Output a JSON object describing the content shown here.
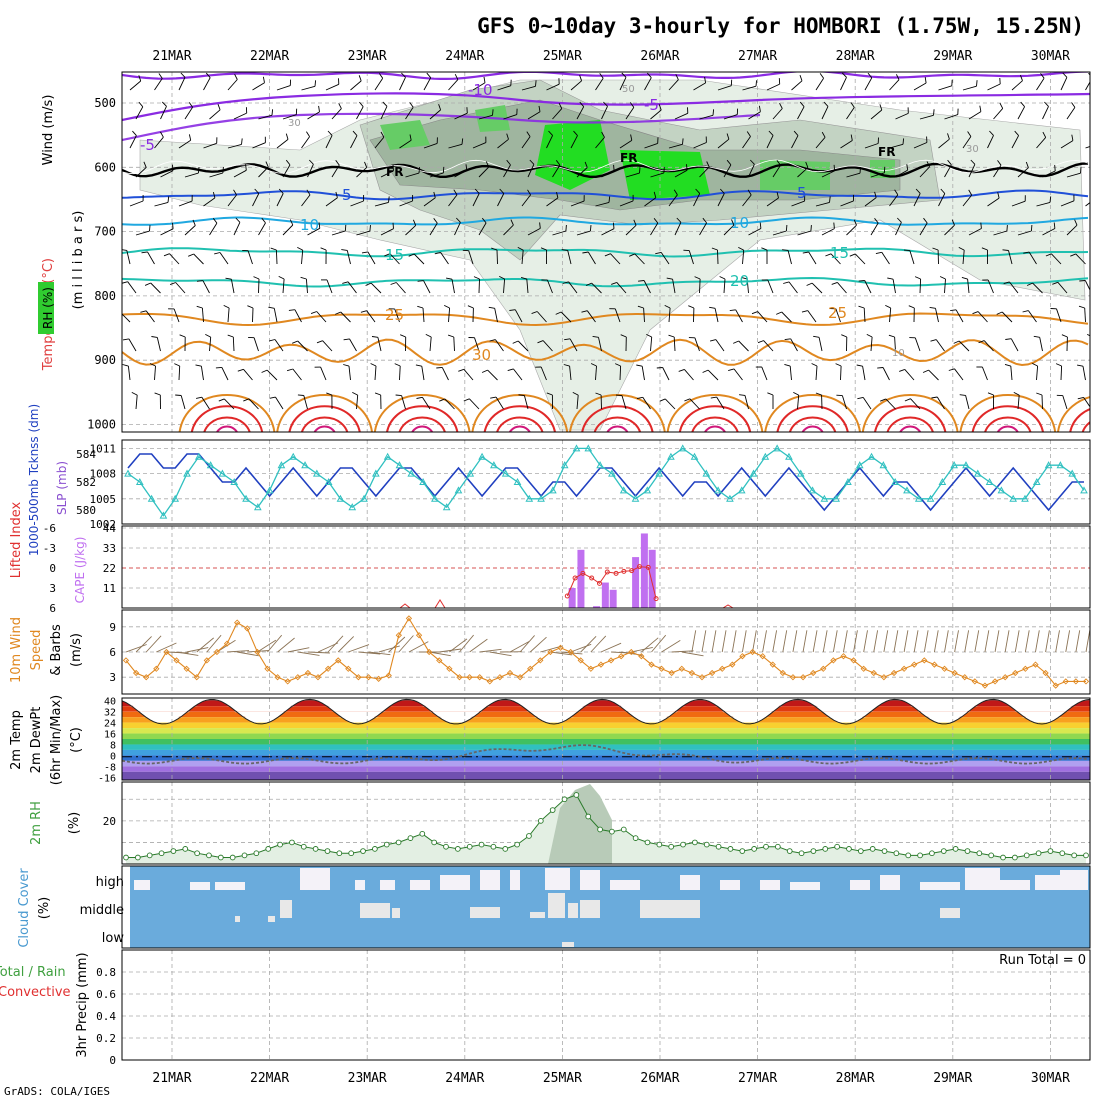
{
  "title": "GFS 0~10day 3-hourly for HOMBORI (1.75W, 15.25N)",
  "credit": "GrADS: COLA/IGES",
  "dates": [
    "21MAR",
    "22MAR",
    "23MAR",
    "24MAR",
    "25MAR",
    "26MAR",
    "27MAR",
    "28MAR",
    "29MAR",
    "30MAR"
  ],
  "colors": {
    "rh_fill": "#c8dcc8",
    "rh_green": "#22cc22",
    "temp_purple": "#8a2be2",
    "temp_blue": "#2050d8",
    "temp_cyan": "#20a8e0",
    "temp_teal": "#20c0b0",
    "temp_orange": "#e08820",
    "temp_red": "#e02828",
    "slp": "#30c0c0",
    "thickness": "#2040c0",
    "cape": "#c070f0",
    "lifted": "#e03030",
    "wind10": "#e08820",
    "rh2m": "#40a040",
    "cloud": "#6aabdc"
  },
  "panels": {
    "profile": {
      "ylabel_wind": "Wind (m/s)",
      "ylabel_temp": "Temperature (°C)",
      "ylabel_mb": "(m i l l i b a r s)",
      "ylabel_rh": "RH (%)",
      "yticks": [
        "500",
        "600",
        "700",
        "800",
        "900",
        "1000"
      ],
      "labels": {
        "t_m10": "-10",
        "t_m5a": "-5",
        "t_m5b": "-5",
        "fr1": "FR",
        "fr2": "FR",
        "fr3": "FR",
        "t5a": "5",
        "t5b": "5",
        "t10a": "10",
        "t10b": "10",
        "t15a": "15",
        "t15b": "15",
        "t20": "20",
        "t25a": "25",
        "t25b": "25",
        "t30": "30",
        "rh50": "50",
        "rh30a": "30",
        "rh30b": "30",
        "rh10": "10"
      }
    },
    "slp": {
      "ylabel_thick": "1000-500mb Tcknss (dm)",
      "ylabel_slp": "SLP (mb)",
      "thick_ticks": [
        "584",
        "582",
        "580"
      ],
      "slp_ticks": [
        "1011",
        "1008",
        "1005",
        "1002"
      ]
    },
    "cape": {
      "ylabel_li": "Lifted Index",
      "ylabel_cape": "CAPE (J/kg)",
      "li_ticks": [
        "-6",
        "-3",
        "0",
        "3",
        "6"
      ],
      "cape_ticks": [
        "44",
        "33",
        "22",
        "11"
      ]
    },
    "wind10": {
      "ylabel1": "10m Wind",
      "ylabel2": "Speed",
      "ylabel3": "& Barbs",
      "ylabel4": "(m/s)",
      "yticks": [
        "9",
        "6",
        "3"
      ]
    },
    "temp2m": {
      "ylabel1": "2m Temp",
      "ylabel2": "2m DewPt",
      "ylabel3": "(6hr Min/Max)",
      "ylabel4": "(°C)",
      "yticks": [
        "40",
        "32",
        "24",
        "16",
        "8",
        "0",
        "-8",
        "-16"
      ]
    },
    "rh2m": {
      "ylabel1": "2m RH",
      "ylabel2": "(%)",
      "yticks": [
        "20"
      ]
    },
    "cloud": {
      "ylabel1": "Cloud Cover",
      "ylabel2": "(%)",
      "levels": [
        "high",
        "middle",
        "low"
      ]
    },
    "precip": {
      "ylabel1": "Total / Rain",
      "ylabel2": "Convective",
      "ylabel3": "3hr Precip (mm)",
      "run_total": "Run Total = 0",
      "yticks": [
        "0.8",
        "0.6",
        "0.4",
        "0.2",
        "0"
      ]
    }
  },
  "chart_data": [
    {
      "type": "line",
      "panel": "profile",
      "title": "GFS 0~10day 3-hourly for HOMBORI (1.75W, 15.25N)",
      "ylabel": "millibars",
      "ylim": [
        1000,
        450
      ],
      "y_scale": "pressure (inverted)",
      "contours_temperature_c": [
        -10,
        -5,
        0,
        5,
        10,
        15,
        20,
        25,
        30
      ],
      "freezing_level_mb": 600,
      "barbs": true,
      "rh_shading": true
    },
    {
      "type": "line",
      "panel": "slp_thickness",
      "series": [
        {
          "name": "SLP (mb)",
          "ylim": [
            1002,
            1012
          ],
          "values": [
            1008,
            1007,
            1005,
            1003,
            1005,
            1008,
            1010,
            1009,
            1008,
            1007,
            1005,
            1004,
            1006,
            1009,
            1010,
            1009,
            1008,
            1007,
            1005,
            1004,
            1005,
            1008,
            1010,
            1009,
            1008,
            1007,
            1005,
            1004,
            1006,
            1008,
            1010,
            1009,
            1008,
            1007,
            1005,
            1005,
            1006,
            1009,
            1011,
            1011,
            1009,
            1008,
            1006,
            1005,
            1006,
            1008,
            1010,
            1011,
            1010,
            1008,
            1006,
            1005,
            1006,
            1008,
            1010,
            1011,
            1010,
            1008,
            1006,
            1005,
            1005,
            1007,
            1009,
            1010,
            1009,
            1007,
            1006,
            1005,
            1005,
            1007,
            1009,
            1009,
            1008,
            1007,
            1006,
            1005,
            1005,
            1007,
            1009,
            1009,
            1008,
            1006
          ]
        },
        {
          "name": "1000-500mb Thickness (dm)",
          "ylim": [
            579,
            585
          ],
          "values": [
            583,
            584,
            584,
            583,
            583,
            584,
            584,
            583,
            582,
            582,
            583,
            582,
            581,
            582,
            583,
            582,
            581,
            582,
            583,
            583,
            582,
            581,
            582,
            583,
            583,
            582,
            581,
            582,
            583,
            582,
            581,
            582,
            583,
            583,
            582,
            581,
            582,
            582,
            581,
            582,
            583,
            583,
            582,
            581,
            582,
            583,
            582,
            581,
            582,
            582,
            581,
            582,
            583,
            582,
            581,
            582,
            583,
            582,
            581,
            580,
            581,
            582,
            583,
            582,
            581,
            582,
            582,
            581,
            580,
            581,
            582,
            583,
            582,
            581,
            582,
            583,
            582,
            581,
            580,
            581,
            582,
            582
          ]
        }
      ]
    },
    {
      "type": "bar",
      "panel": "cape",
      "series": [
        {
          "name": "CAPE (J/kg)",
          "ylim": [
            0,
            44
          ],
          "bars": [
            {
              "day": 4.6,
              "value": 11
            },
            {
              "day": 4.69,
              "value": 32
            },
            {
              "day": 4.85,
              "value": 1
            },
            {
              "day": 4.94,
              "value": 14
            },
            {
              "day": 5.02,
              "value": 10
            },
            {
              "day": 5.25,
              "value": 28
            },
            {
              "day": 5.34,
              "value": 41
            },
            {
              "day": 5.42,
              "value": 32
            }
          ]
        },
        {
          "name": "Lifted Index",
          "ylim": [
            6,
            -6
          ],
          "points": [
            {
              "day": 4.55,
              "value": 4.2
            },
            {
              "day": 4.63,
              "value": 1.5
            },
            {
              "day": 4.71,
              "value": 0.8
            },
            {
              "day": 4.8,
              "value": 1.5
            },
            {
              "day": 4.88,
              "value": 2.3
            },
            {
              "day": 4.96,
              "value": 0.6
            },
            {
              "day": 5.05,
              "value": 0.8
            },
            {
              "day": 5.13,
              "value": 0.5
            },
            {
              "day": 5.21,
              "value": 0.4
            },
            {
              "day": 5.29,
              "value": -0.2
            },
            {
              "day": 5.38,
              "value": -0.1
            },
            {
              "day": 5.46,
              "value": 4.6
            }
          ]
        }
      ]
    },
    {
      "type": "line",
      "panel": "wind10",
      "name": "10m Wind Speed (m/s)",
      "ylim": [
        1,
        11
      ],
      "values": [
        5,
        3.5,
        3,
        4,
        6,
        5,
        4,
        3,
        5,
        6,
        7,
        9.5,
        8.8,
        6,
        4,
        3,
        2.5,
        3,
        3.5,
        3,
        4,
        5,
        4,
        3,
        3,
        2.8,
        3.2,
        8,
        10,
        8,
        6,
        5,
        4,
        3,
        3,
        3,
        2.5,
        3,
        3.5,
        3,
        4,
        5,
        6,
        6.5,
        6,
        5,
        4,
        4.5,
        5,
        5.5,
        6,
        5.5,
        4.5,
        4,
        3.5,
        4,
        3.5,
        3,
        3.5,
        4,
        4.5,
        5.5,
        6,
        5.5,
        4.5,
        3.5,
        3,
        3,
        3.5,
        4,
        5,
        5.5,
        5,
        4,
        3.5,
        3,
        3.5,
        4,
        4.5,
        5,
        4.5,
        4,
        3.5,
        3,
        2.5,
        2,
        2.5,
        3,
        3.5,
        4,
        4.5,
        3.5,
        2,
        2.5,
        2.5,
        2.5
      ]
    },
    {
      "type": "area",
      "panel": "temp2m",
      "ylim": [
        -16,
        40
      ],
      "series": [
        {
          "name": "2m Temp",
          "daily_max": 40,
          "daily_min": 24
        },
        {
          "name": "2m DewPt",
          "values_note": "around -4 to 6, highest near 25MAR (8)"
        }
      ]
    },
    {
      "type": "area",
      "panel": "rh2m",
      "name": "2m RH (%)",
      "ylim": [
        0,
        38
      ],
      "values": [
        3,
        3,
        4,
        5,
        6,
        7,
        5,
        4,
        3,
        3,
        4,
        5,
        7,
        9,
        10,
        8,
        7,
        6,
        5,
        5,
        6,
        7,
        9,
        10,
        12,
        14,
        10,
        8,
        7,
        8,
        9,
        8,
        7,
        9,
        13,
        20,
        25,
        30,
        32,
        22,
        16,
        15,
        16,
        12,
        10,
        9,
        8,
        9,
        10,
        9,
        8,
        7,
        6,
        7,
        8,
        8,
        6,
        5,
        6,
        7,
        8,
        7,
        6,
        7,
        6,
        5,
        4,
        4,
        5,
        6,
        7,
        6,
        5,
        4,
        3,
        3,
        4,
        5,
        6,
        5,
        4,
        4
      ]
    },
    {
      "type": "heatmap",
      "panel": "cloud",
      "rows": [
        "high",
        "middle",
        "low"
      ],
      "note": "blue = cover, white = clear; mostly overcast at middle/low"
    },
    {
      "type": "bar",
      "panel": "precip",
      "name": "3hr Precip (mm)",
      "ylim": [
        0,
        1
      ],
      "values": [],
      "run_total": 0
    }
  ]
}
